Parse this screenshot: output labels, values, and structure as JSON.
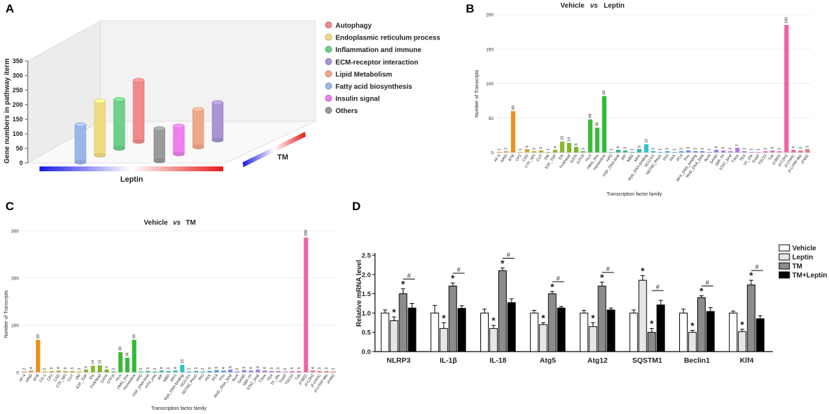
{
  "chart_data": [
    {
      "panel": "A",
      "type": "bar3d",
      "ylabel": "Gene numbers in pathway iterm",
      "yticks": [
        0,
        50,
        100,
        150,
        200,
        250,
        300,
        350
      ],
      "ylim": [
        0,
        350
      ],
      "axis_left": "Leptin",
      "axis_right": "TM",
      "legend": [
        {
          "label": "Autophagy",
          "color": "#f08a8a"
        },
        {
          "label": "Endoplasmic reticulum process",
          "color": "#f1dc80"
        },
        {
          "label": "Inflammation and immune",
          "color": "#6fd08a"
        },
        {
          "label": "ECM-receptor interaction",
          "color": "#a994d4"
        },
        {
          "label": "Lipid Metabolism",
          "color": "#f0a88a"
        },
        {
          "label": "Fatty acid biosynthesis",
          "color": "#9bb7ea"
        },
        {
          "label": "Insulin signal",
          "color": "#ef7ff0"
        },
        {
          "label": "Others",
          "color": "#9a9a9a"
        }
      ],
      "leptin_row": [
        {
          "category": "Fatty acid biosynthesis",
          "value": 215
        },
        {
          "category": "Endoplasmic reticulum process",
          "value": 310
        },
        {
          "category": "Inflammation and immune",
          "value": 280
        },
        {
          "category": "Autophagy",
          "value": 350
        }
      ],
      "tm_row": [
        {
          "category": "Others",
          "value": 185
        },
        {
          "category": "Insulin signal",
          "value": 160
        },
        {
          "category": "Lipid Metabolism",
          "value": 215
        },
        {
          "category": "ECM-receptor interaction",
          "value": 215
        }
      ]
    },
    {
      "panel": "B",
      "type": "bar",
      "title_left": "Vehicle",
      "title_mid": "vs",
      "title_right": "Leptin",
      "ylabel": "Number of Transcripts",
      "xlabel": "Transcription factor family",
      "ylim": [
        0,
        200
      ],
      "yticks": [
        0,
        50,
        100,
        150,
        200
      ],
      "categories": [
        "AF-4",
        "ARID",
        "BTB",
        "CP2",
        "CSD",
        "CTF_NFI",
        "CUT",
        "DM",
        "E2F_TDP",
        "Ets",
        "Forkhead",
        "GATA",
        "GTF2I",
        "HLH",
        "HMG_box",
        "Homeobox",
        "HPD",
        "HSF_DNA-bind",
        "IRF",
        "MBD",
        "MH1",
        "Myb_DNA-binding",
        "NCU-G1",
        "NDT80_PhoG",
        "P53",
        "PAX",
        "PC4",
        "Pou",
        "RFX_DNA_binding",
        "RHD_DNA_bind",
        "Runt",
        "SAND",
        "SRF-TF",
        "STAT_bind",
        "T-box",
        "TEA",
        "TF_Otx",
        "THAP",
        "TSC22",
        "Tub",
        "zf-BED",
        "zf-C2H2",
        "zf-CHHC",
        "zf-LITAF-like",
        "zf-MIZ"
      ],
      "values": [
        1,
        2,
        60,
        1,
        5,
        2,
        3,
        1,
        4,
        16,
        14,
        8,
        2,
        48,
        36,
        82,
        1,
        4,
        3,
        1,
        5,
        12,
        2,
        1,
        2,
        1,
        2,
        3,
        2,
        2,
        1,
        4,
        3,
        2,
        7,
        2,
        1,
        1,
        2,
        3,
        2,
        185,
        4,
        3,
        5
      ],
      "label_texts": [
        "1",
        "2",
        "60",
        "1",
        "5",
        "2",
        "3",
        "1",
        "4",
        "16",
        "14",
        "8",
        "2",
        "48",
        "36",
        "82",
        "1",
        "4",
        "3",
        "1",
        "5",
        "12",
        "2",
        "1",
        "2",
        "1",
        "2",
        "3",
        "2",
        "2",
        "1",
        "4",
        "3",
        "2",
        "7",
        "2",
        "1",
        "1",
        "2",
        "3",
        "2",
        "185",
        "4",
        "3",
        "5"
      ],
      "colors": [
        "#e87a7a",
        "#e39a58",
        "#ee8f1c",
        "#dca04e",
        "#c9a845",
        "#bfa93c",
        "#b0ac3a",
        "#a4ad36",
        "#9aae34",
        "#8db82e",
        "#82b52a",
        "#78b22a",
        "#6ab02d",
        "#3fb83a",
        "#38b740",
        "#2fba38",
        "#30b865",
        "#34b67e",
        "#3ab58e",
        "#36b59e",
        "#35b6ae",
        "#2ec4c4",
        "#37b2ca",
        "#3aa9d3",
        "#3ea1dc",
        "#4a9ae2",
        "#5494e8",
        "#5f8ee8",
        "#6a8ae8",
        "#7587e8",
        "#8483e6",
        "#9180e6",
        "#9c7ee5",
        "#a87ce6",
        "#b47be5",
        "#c27ae2",
        "#cc78dc",
        "#d675d6",
        "#dd72cc",
        "#e270c0",
        "#e66fb5",
        "#ef63a4",
        "#e86c96",
        "#ea718c",
        "#ea7682"
      ]
    },
    {
      "panel": "C",
      "type": "bar",
      "title_left": "Vehicle",
      "title_mid": "vs",
      "title_right": "TM",
      "ylabel": "Number of Transcripts",
      "xlabel": "Transcription factor family",
      "ylim": [
        0,
        300
      ],
      "yticks": [
        0,
        100,
        200,
        300
      ],
      "categories": [
        "AF-4",
        "ARID",
        "BTB",
        "CG-1",
        "CP2",
        "CSD",
        "CTF_NFI",
        "CUT",
        "DM",
        "E2F_TDP",
        "Ets",
        "Forkhead",
        "GATA",
        "GTF2I",
        "HLH",
        "HMG_box",
        "Homeobox",
        "HPD",
        "HSF_DNA-bind",
        "HTH_psq",
        "IRF",
        "MBD",
        "MH1",
        "Myb_DNA-binding",
        "NCU-G1",
        "NDT80_PhoG",
        "P53",
        "PAX",
        "PC4",
        "Pou",
        "RHD_DNA_bind",
        "Runt",
        "SAND",
        "SRF-TF",
        "STAT_bind",
        "T-box",
        "TEA",
        "TF_Otx",
        "THAP",
        "TSC22",
        "Tub",
        "zf-BED",
        "zf-C2H2",
        "zf-CHHC",
        "zf-LITAF-like",
        "zf-MIZ"
      ],
      "values": [
        2,
        4,
        69,
        2,
        3,
        4,
        3,
        3,
        2,
        6,
        14,
        15,
        6,
        2,
        43,
        31,
        69,
        2,
        3,
        2,
        4,
        3,
        4,
        16,
        2,
        3,
        2,
        3,
        5,
        4,
        6,
        2,
        5,
        4,
        6,
        4,
        3,
        3,
        2,
        3,
        3,
        286,
        4,
        3,
        3,
        2
      ],
      "label_texts": [
        "2",
        "4",
        "69",
        "2",
        "3",
        "4",
        "3",
        "3",
        "2",
        "6",
        "14",
        "15",
        "6",
        "2",
        "43",
        "31",
        "69",
        "2",
        "3",
        "2",
        "4",
        "3",
        "4",
        "16",
        "2",
        "3",
        "2",
        "3",
        "5",
        "4",
        "6",
        "2",
        "5",
        "4",
        "6",
        "4",
        "3",
        "3",
        "2",
        "3",
        "3",
        "286",
        "4",
        "3",
        "3",
        "2"
      ],
      "colors": [
        "#e87a7a",
        "#e39a58",
        "#ee8f1c",
        "#dca04e",
        "#d2a34a",
        "#c9a845",
        "#bfa93c",
        "#b0ac3a",
        "#a4ad36",
        "#9aae34",
        "#8db82e",
        "#82b52a",
        "#78b22a",
        "#6ab02d",
        "#3fb83a",
        "#38b740",
        "#2fba38",
        "#30b865",
        "#34b67e",
        "#38b589",
        "#3ab58e",
        "#36b59e",
        "#35b6ae",
        "#2ec4c4",
        "#37b2ca",
        "#3aa9d3",
        "#3ea1dc",
        "#4a9ae2",
        "#5494e8",
        "#5f8ee8",
        "#7587e8",
        "#8483e6",
        "#9180e6",
        "#9c7ee5",
        "#a87ce6",
        "#b47be5",
        "#c27ae2",
        "#cc78dc",
        "#d675d6",
        "#dd72cc",
        "#e270c0",
        "#ef63a4",
        "#e86c96",
        "#ea718c",
        "#ea7682",
        "#ea7a78"
      ]
    },
    {
      "panel": "D",
      "type": "grouped_bar",
      "ylabel": "Relative mRNA level",
      "ylim": [
        0,
        2.5
      ],
      "yticks": [
        "0.0",
        "0.5",
        "1.0",
        "1.5",
        "2.0",
        "2.5"
      ],
      "categories": [
        "NLRP3",
        "IL-1β",
        "IL-18",
        "Atg5",
        "Atg12",
        "SQSTM1",
        "Beclin1",
        "Klf4"
      ],
      "series": [
        {
          "name": "Vehicle",
          "color": "#ffffff",
          "values": [
            1.0,
            1.0,
            1.0,
            1.0,
            1.0,
            1.0,
            1.0,
            1.0
          ],
          "errors": [
            0.08,
            0.2,
            0.1,
            0.07,
            0.07,
            0.08,
            0.1,
            0.05
          ]
        },
        {
          "name": "Leptin",
          "color": "#e6e6e6",
          "values": [
            0.8,
            0.6,
            0.6,
            0.7,
            0.65,
            1.85,
            0.5,
            0.52
          ],
          "errors": [
            0.1,
            0.15,
            0.08,
            0.05,
            0.1,
            0.12,
            0.05,
            0.06
          ]
        },
        {
          "name": "TM",
          "color": "#8c8c8c",
          "values": [
            1.5,
            1.7,
            2.1,
            1.5,
            1.7,
            0.5,
            1.4,
            1.73
          ],
          "errors": [
            0.13,
            0.08,
            0.07,
            0.06,
            0.1,
            0.1,
            0.05,
            0.12
          ]
        },
        {
          "name": "TM+Leptin",
          "color": "#000000",
          "values": [
            1.13,
            1.12,
            1.27,
            1.13,
            1.08,
            1.21,
            1.04,
            0.85
          ],
          "errors": [
            0.12,
            0.07,
            0.1,
            0.04,
            0.05,
            0.12,
            0.1,
            0.08
          ]
        }
      ],
      "star_leptin": "*",
      "star_tm": "*",
      "hash_mark": "#"
    }
  ],
  "panel_letters": {
    "a": "A",
    "b": "B",
    "c": "C",
    "d": "D"
  }
}
